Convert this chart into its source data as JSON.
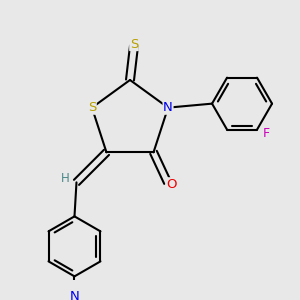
{
  "background_color": "#e8e8e8",
  "atom_colors": {
    "S": "#b8a000",
    "N": "#0000ee",
    "O": "#ee0000",
    "F": "#cc00bb",
    "H": "#4a8888",
    "C": "#000000"
  },
  "bond_color": "#000000",
  "bond_width": 1.5,
  "figsize": [
    3.0,
    3.0
  ],
  "dpi": 100
}
